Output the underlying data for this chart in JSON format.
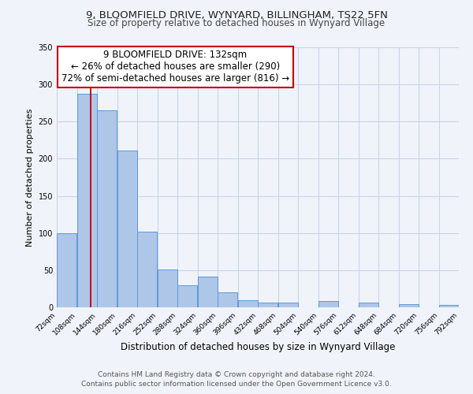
{
  "title": "9, BLOOMFIELD DRIVE, WYNYARD, BILLINGHAM, TS22 5FN",
  "subtitle": "Size of property relative to detached houses in Wynyard Village",
  "xlabel": "Distribution of detached houses by size in Wynyard Village",
  "ylabel": "Number of detached properties",
  "bin_edges": [
    72,
    108,
    144,
    180,
    216,
    252,
    288,
    324,
    360,
    396,
    432,
    468,
    504,
    540,
    576,
    612,
    648,
    684,
    720,
    756,
    792
  ],
  "bar_heights": [
    100,
    287,
    265,
    211,
    102,
    51,
    30,
    41,
    20,
    10,
    6,
    6,
    0,
    8,
    0,
    6,
    0,
    4,
    0,
    3
  ],
  "bar_color": "#aec6e8",
  "bar_edge_color": "#5b9bd5",
  "vline_x": 132,
  "vline_color": "#c00000",
  "annotation_title": "9 BLOOMFIELD DRIVE: 132sqm",
  "annotation_line1": "← 26% of detached houses are smaller (290)",
  "annotation_line2": "72% of semi-detached houses are larger (816) →",
  "annotation_box_color": "#ffffff",
  "annotation_box_edge_color": "#c00000",
  "ylim": [
    0,
    350
  ],
  "yticks": [
    0,
    50,
    100,
    150,
    200,
    250,
    300,
    350
  ],
  "tick_labels": [
    "72sqm",
    "108sqm",
    "144sqm",
    "180sqm",
    "216sqm",
    "252sqm",
    "288sqm",
    "324sqm",
    "360sqm",
    "396sqm",
    "432sqm",
    "468sqm",
    "504sqm",
    "540sqm",
    "576sqm",
    "612sqm",
    "648sqm",
    "684sqm",
    "720sqm",
    "756sqm",
    "792sqm"
  ],
  "footnote1": "Contains HM Land Registry data © Crown copyright and database right 2024.",
  "footnote2": "Contains public sector information licensed under the Open Government Licence v3.0.",
  "background_color": "#f0f4fa",
  "grid_color": "#c8d4e8",
  "title_fontsize": 9.5,
  "subtitle_fontsize": 8.5,
  "ylabel_fontsize": 8,
  "xlabel_fontsize": 8.5,
  "annotation_fontsize": 8.5,
  "footnote_fontsize": 6.5,
  "tick_fontsize": 6.5
}
